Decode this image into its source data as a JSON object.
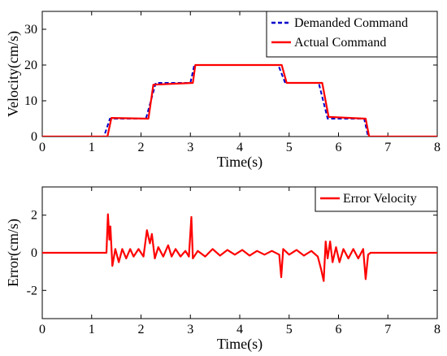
{
  "chart_data": [
    {
      "type": "line",
      "title": "",
      "xlabel": "Time(s)",
      "ylabel": "Velocity(cm/s)",
      "xlim": [
        0,
        8
      ],
      "ylim": [
        0,
        35
      ],
      "xticks": [
        "0",
        "1",
        "2",
        "3",
        "4",
        "5",
        "6",
        "7",
        "8"
      ],
      "yticks": [
        "0",
        "10",
        "20",
        "30"
      ],
      "grid": false,
      "legend_position": "top-right",
      "series": [
        {
          "name": "Demanded Command",
          "color": "#0000cc",
          "style": "dashed",
          "points": [
            [
              0,
              0
            ],
            [
              1.25,
              0
            ],
            [
              1.37,
              5
            ],
            [
              2.1,
              5
            ],
            [
              2.3,
              15
            ],
            [
              3.0,
              15
            ],
            [
              3.08,
              20
            ],
            [
              4.78,
              20
            ],
            [
              4.92,
              15
            ],
            [
              5.6,
              15
            ],
            [
              5.78,
              5
            ],
            [
              6.52,
              5
            ],
            [
              6.6,
              0
            ],
            [
              8,
              0
            ]
          ]
        },
        {
          "name": "Actual Command",
          "color": "#ff0000",
          "style": "solid",
          "points": [
            [
              0,
              0
            ],
            [
              1.32,
              0
            ],
            [
              1.4,
              5.2
            ],
            [
              2.15,
              5
            ],
            [
              2.25,
              14.5
            ],
            [
              3.05,
              15
            ],
            [
              3.1,
              20
            ],
            [
              4.85,
              20
            ],
            [
              4.95,
              15
            ],
            [
              5.67,
              15
            ],
            [
              5.8,
              5.5
            ],
            [
              6.55,
              5
            ],
            [
              6.62,
              0
            ],
            [
              8,
              0
            ]
          ]
        }
      ]
    },
    {
      "type": "line",
      "title": "",
      "xlabel": "Time(s)",
      "ylabel": "Error(cm/s)",
      "xlim": [
        0,
        8
      ],
      "ylim": [
        -3.5,
        3.5
      ],
      "xticks": [
        "0",
        "1",
        "2",
        "3",
        "4",
        "5",
        "6",
        "7",
        "8"
      ],
      "yticks": [
        "-2",
        "0",
        "2"
      ],
      "grid": false,
      "legend_position": "top-right",
      "series": [
        {
          "name": "Error Velocity",
          "color": "#ff0000",
          "style": "solid",
          "points": [
            [
              0,
              0
            ],
            [
              1.3,
              0
            ],
            [
              1.33,
              2.05
            ],
            [
              1.36,
              0.7
            ],
            [
              1.38,
              1.4
            ],
            [
              1.42,
              -0.7
            ],
            [
              1.48,
              0.2
            ],
            [
              1.55,
              -0.5
            ],
            [
              1.62,
              0.2
            ],
            [
              1.7,
              -0.3
            ],
            [
              1.78,
              0.2
            ],
            [
              1.85,
              -0.2
            ],
            [
              1.95,
              0.2
            ],
            [
              2.05,
              -0.2
            ],
            [
              2.12,
              1.2
            ],
            [
              2.18,
              0.5
            ],
            [
              2.22,
              1.0
            ],
            [
              2.28,
              -0.3
            ],
            [
              2.35,
              0.3
            ],
            [
              2.45,
              -0.2
            ],
            [
              2.55,
              0.4
            ],
            [
              2.62,
              -0.2
            ],
            [
              2.7,
              0.2
            ],
            [
              2.8,
              -0.2
            ],
            [
              2.9,
              0.1
            ],
            [
              2.97,
              -0.2
            ],
            [
              3.02,
              1.9
            ],
            [
              3.05,
              -0.3
            ],
            [
              3.15,
              0.1
            ],
            [
              3.3,
              -0.2
            ],
            [
              3.45,
              0.2
            ],
            [
              3.6,
              -0.15
            ],
            [
              3.75,
              0.15
            ],
            [
              3.9,
              -0.1
            ],
            [
              4.05,
              0.15
            ],
            [
              4.2,
              -0.15
            ],
            [
              4.35,
              0.1
            ],
            [
              4.5,
              -0.1
            ],
            [
              4.65,
              0.1
            ],
            [
              4.8,
              -0.1
            ],
            [
              4.84,
              -1.3
            ],
            [
              4.88,
              0.2
            ],
            [
              5.0,
              -0.1
            ],
            [
              5.15,
              0.15
            ],
            [
              5.3,
              -0.15
            ],
            [
              5.45,
              0.1
            ],
            [
              5.58,
              -0.2
            ],
            [
              5.65,
              -0.9
            ],
            [
              5.7,
              -1.5
            ],
            [
              5.74,
              0.6
            ],
            [
              5.78,
              -0.3
            ],
            [
              5.83,
              0.6
            ],
            [
              5.88,
              -0.5
            ],
            [
              5.95,
              0.3
            ],
            [
              6.02,
              -0.5
            ],
            [
              6.1,
              0.2
            ],
            [
              6.2,
              -0.3
            ],
            [
              6.3,
              0.2
            ],
            [
              6.4,
              -0.3
            ],
            [
              6.5,
              0.2
            ],
            [
              6.55,
              -1.4
            ],
            [
              6.6,
              -0.1
            ],
            [
              6.65,
              0
            ],
            [
              8,
              0
            ]
          ]
        }
      ]
    }
  ]
}
